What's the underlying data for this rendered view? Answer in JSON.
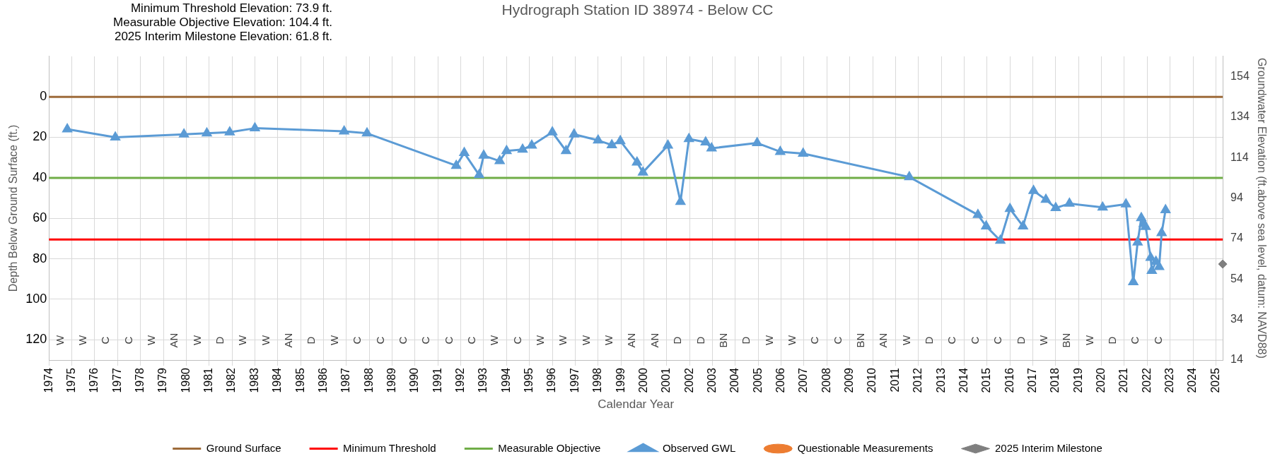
{
  "chart_data": {
    "type": "line",
    "title": "Hydrograph Station ID 38974 - Below CC",
    "xlabel": "Calendar Year",
    "ylabel": "Depth Below Ground Surface (ft.)",
    "y2label": "Groundwater Elevation (ft.above sea level, datum: NAVD88)",
    "annotations": [
      "Minimum Threshold Elevation: 73.9 ft.",
      "Measurable Objective Elevation: 104.4 ft.",
      "2025 Interim Milestone Elevation: 61.8 ft.",
      "W",
      "W",
      "C",
      "C",
      "W",
      "AN",
      "W",
      "D",
      "W",
      "W",
      "AN",
      "D",
      "W",
      "C",
      "C",
      "C",
      "C",
      "C",
      "C",
      "W",
      "C",
      "W",
      "W",
      "W",
      "W",
      "AN",
      "AN",
      "D",
      "D",
      "BN",
      "D",
      "W",
      "W",
      "C",
      "C",
      "BN",
      "AN",
      "W",
      "D",
      "C",
      "C",
      "C",
      "D",
      "W",
      "BN",
      "W",
      "D",
      "C",
      "C"
    ],
    "series": [
      {
        "name": "Observed GWL",
        "type": "line",
        "marker": "triangle",
        "color": "#5b9bd5",
        "x": [
          1974.8,
          1976.9,
          1979.9,
          1980.9,
          1981.9,
          1983.0,
          1986.9,
          1987.9,
          1991.8,
          1992.15,
          1992.8,
          1993.0,
          1993.7,
          1994.0,
          1994.7,
          1995.1,
          1996.0,
          1996.6,
          1996.95,
          1998.0,
          1998.6,
          1998.97,
          1999.7,
          1999.96,
          2001.05,
          2001.6,
          2001.97,
          2002.7,
          2002.96,
          2004.95,
          2005.96,
          2006.96,
          2011.6,
          2014.6,
          2014.96,
          2015.58,
          2016.0,
          2016.57,
          2017.03,
          2017.57,
          2018.0,
          2018.6,
          2020.05,
          2021.07,
          2021.39,
          2021.58,
          2021.74,
          2021.85,
          2021.93,
          2022.15,
          2022.2,
          2022.38,
          2022.52,
          2022.63,
          2022.8
        ],
        "values": [
          16,
          20,
          18.5,
          18,
          17.5,
          15.5,
          17,
          18,
          34,
          27.7,
          38.6,
          29,
          31.7,
          26.7,
          26,
          24,
          17.5,
          26.7,
          18.5,
          21.5,
          23.8,
          21.8,
          32.4,
          37.3,
          24,
          51.8,
          20.8,
          22.4,
          25.4,
          22.8,
          27.1,
          28,
          39.6,
          58.3,
          63.9,
          71,
          55.3,
          63.9,
          46.4,
          50.8,
          54.9,
          52.7,
          54.6,
          53,
          91.5,
          71.9,
          59.8,
          62.7,
          64.2,
          79.4,
          85.9,
          81.4,
          84,
          67.2,
          55.9
        ]
      },
      {
        "name": "Questionable Measurements",
        "type": "scatter",
        "marker": "circle",
        "color": "#ed7d31"
      },
      {
        "name": "2025 Interim Milestone",
        "type": "scatter",
        "marker": "diamond",
        "color": "#7f7f7f",
        "x": [
          2025.3
        ],
        "values": [
          82.6
        ]
      }
    ],
    "ref_lines": [
      {
        "axis": "y",
        "value": 0,
        "label": "Ground Surface",
        "color": "#9e6b3a"
      },
      {
        "axis": "y",
        "value": 70.5,
        "label": "Minimum Threshold",
        "color": "#ff0000"
      },
      {
        "axis": "y",
        "value": 40,
        "label": "Measurable Objective",
        "color": "#70ad47"
      }
    ],
    "xlim": [
      1974,
      2025.3
    ],
    "xticks": [
      1974,
      1975,
      1976,
      1977,
      1978,
      1979,
      1980,
      1981,
      1982,
      1983,
      1984,
      1985,
      1986,
      1987,
      1988,
      1989,
      1990,
      1991,
      1992,
      1993,
      1994,
      1995,
      1996,
      1997,
      1998,
      1999,
      2000,
      2001,
      2002,
      2003,
      2004,
      2005,
      2006,
      2007,
      2008,
      2009,
      2010,
      2011,
      2012,
      2013,
      2014,
      2015,
      2016,
      2017,
      2018,
      2019,
      2020,
      2021,
      2022,
      2023,
      2024,
      2025
    ],
    "ylim": [
      130,
      -20
    ],
    "yticks": [
      0,
      20,
      40,
      60,
      80,
      100,
      120
    ],
    "y2lim": [
      14,
      164
    ],
    "y2ticks": [
      14,
      34,
      54,
      74,
      94,
      114,
      134,
      154
    ],
    "grid": true,
    "legend": "bottom"
  }
}
